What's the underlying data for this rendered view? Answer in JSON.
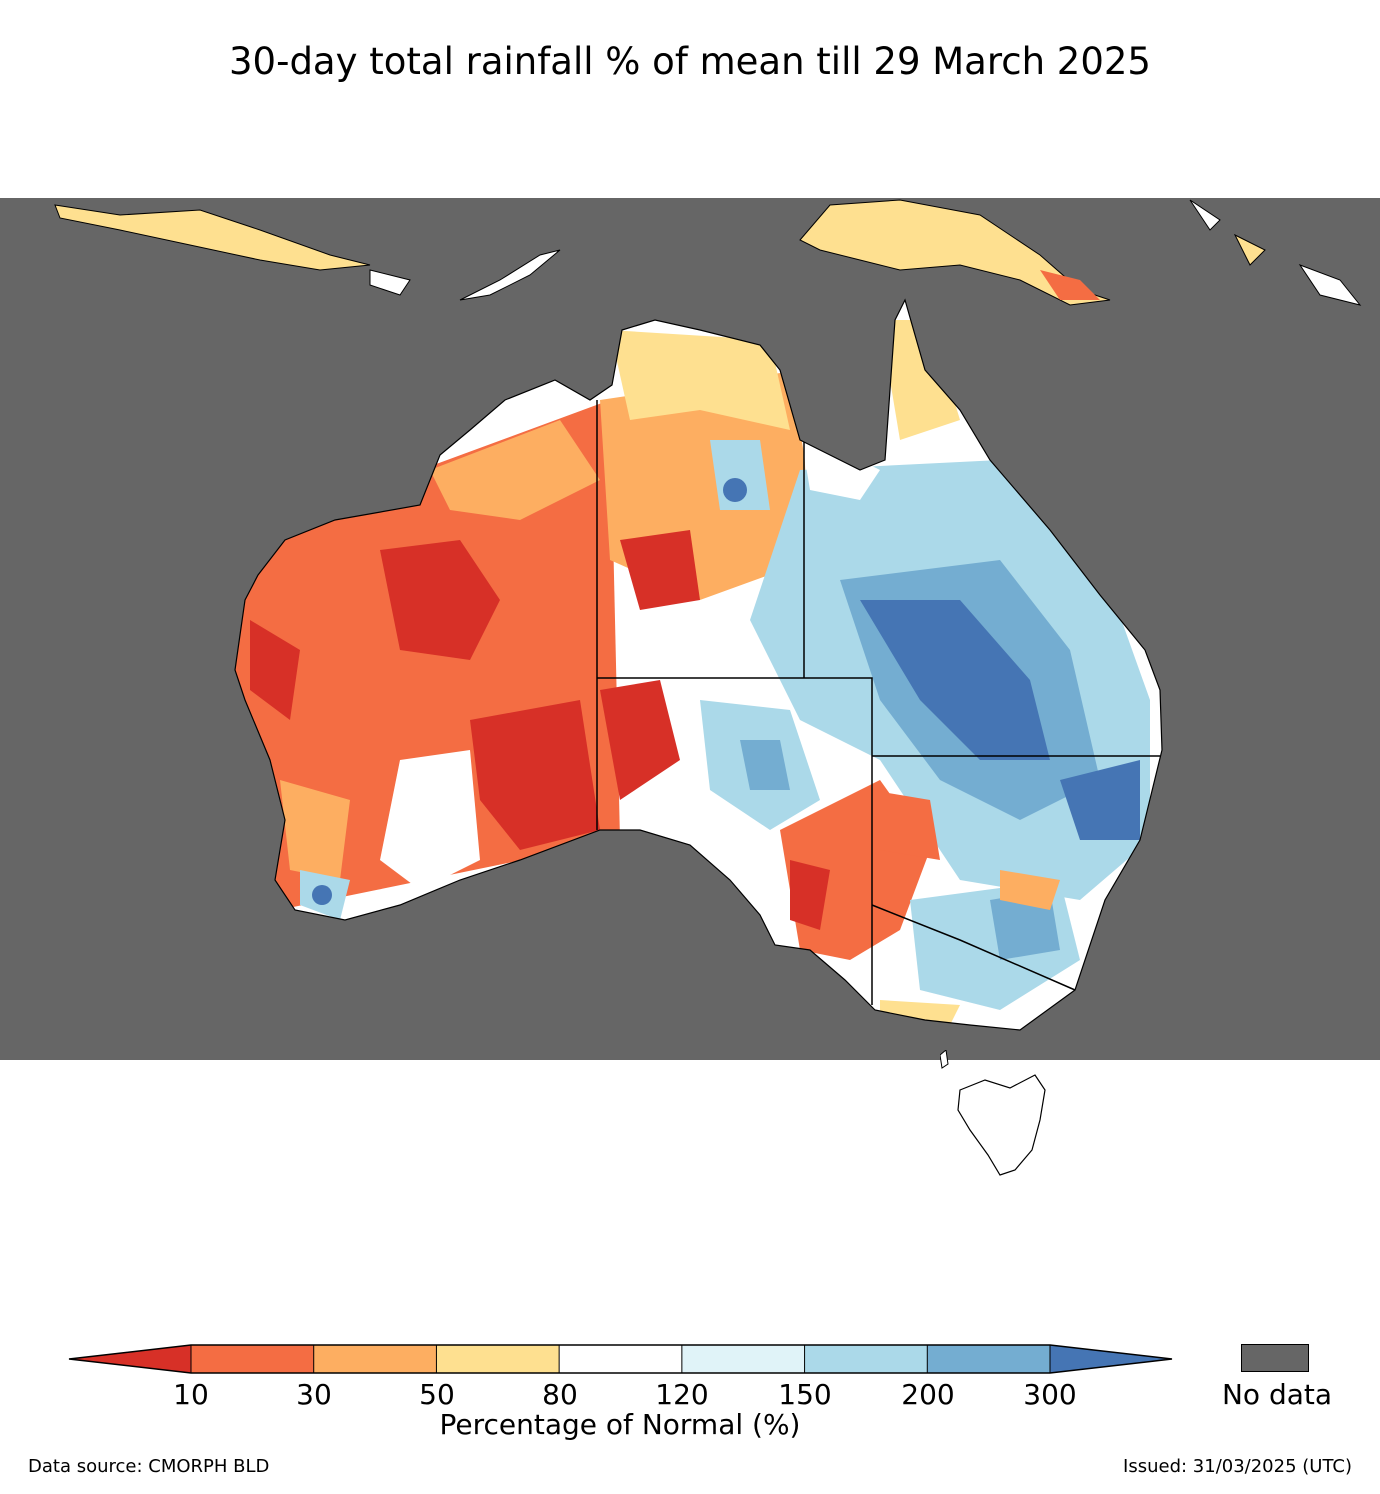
{
  "title": "30-day total rainfall % of mean till 29 March 2025",
  "legend": {
    "label": "Percentage of Normal (%)",
    "ticks": [
      "10",
      "30",
      "50",
      "80",
      "120",
      "150",
      "200",
      "300"
    ],
    "colors": [
      "#d73027",
      "#f46d43",
      "#fdae61",
      "#fee090",
      "#ffffff",
      "#e0f3f8",
      "#abd9e9",
      "#74add1",
      "#4575b4"
    ],
    "no_data_label": "No data",
    "no_data_color": "#666666"
  },
  "footer": {
    "source": "Data source: CMORPH BLD",
    "issued": "Issued: 31/03/2025 (UTC)"
  }
}
